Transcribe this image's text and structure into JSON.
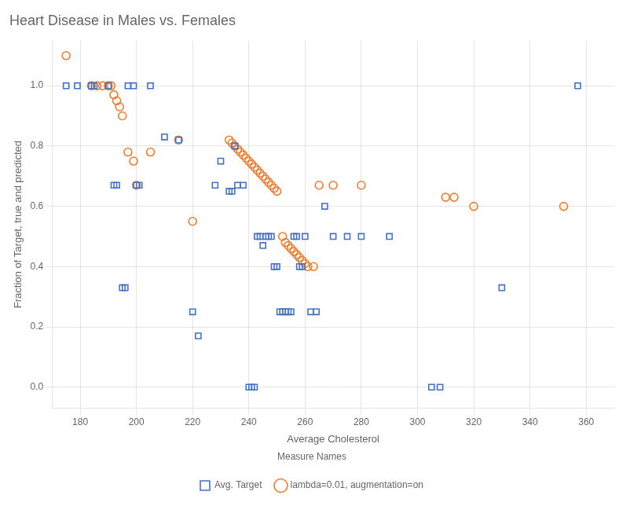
{
  "chart_data": {
    "type": "scatter",
    "title": "Heart Disease in Males vs. Females",
    "x_label": "Average Cholesterol",
    "y_label": "Fraction of Target, true and predicted",
    "xlim": [
      170,
      370
    ],
    "ylim": [
      -0.07,
      1.15
    ],
    "xticks": [
      180,
      200,
      220,
      240,
      260,
      280,
      300,
      320,
      340,
      360
    ],
    "yticks": [
      {
        "value": 0,
        "label": "0.0"
      },
      0.2,
      0.4,
      0.6,
      0.8,
      {
        "value": 1,
        "label": "1.0"
      }
    ],
    "grid": true,
    "legend": "bottom",
    "legend_title": "Measure Names",
    "series": [
      {
        "name": "Avg. Target",
        "color": "#4472c4",
        "marker": "square",
        "x": [
          175,
          179,
          184,
          185,
          190,
          192,
          193,
          195,
          196,
          197,
          199,
          200,
          201,
          205,
          210,
          215,
          220,
          222,
          228,
          230,
          233,
          234,
          235,
          236,
          238,
          240,
          241,
          242,
          243,
          244,
          245,
          246,
          247,
          248,
          249,
          250,
          251,
          252,
          253,
          254,
          255,
          256,
          257,
          258,
          259,
          260,
          262,
          264,
          267,
          270,
          275,
          280,
          290,
          305,
          308,
          330,
          357
        ],
        "values": [
          1.0,
          1.0,
          1.0,
          1.0,
          1.0,
          0.67,
          0.67,
          0.33,
          0.33,
          1.0,
          1.0,
          0.67,
          0.67,
          1.0,
          0.83,
          0.82,
          0.25,
          0.17,
          0.67,
          0.75,
          0.65,
          0.65,
          0.8,
          0.67,
          0.67,
          0.0,
          0.0,
          0.0,
          0.5,
          0.5,
          0.47,
          0.5,
          0.5,
          0.5,
          0.4,
          0.4,
          0.25,
          0.25,
          0.25,
          0.25,
          0.25,
          0.5,
          0.5,
          0.4,
          0.4,
          0.5,
          0.25,
          0.25,
          0.6,
          0.5,
          0.5,
          0.5,
          0.5,
          0.0,
          0.0,
          0.33,
          1.0
        ]
      },
      {
        "name": "lambda=0.01, augmentation=on",
        "color": "#ed7d31",
        "marker": "circle",
        "x": [
          175,
          184,
          186,
          188,
          190,
          191,
          192,
          193,
          194,
          195,
          197,
          199,
          200,
          205,
          215,
          220,
          233,
          234,
          235,
          236,
          237,
          238,
          239,
          240,
          241,
          242,
          243,
          244,
          245,
          246,
          247,
          248,
          249,
          250,
          252,
          253,
          254,
          255,
          256,
          257,
          258,
          259,
          260,
          261,
          263,
          265,
          270,
          280,
          310,
          313,
          320,
          352
        ],
        "values": [
          1.1,
          1.0,
          1.0,
          1.0,
          1.0,
          1.0,
          0.97,
          0.95,
          0.93,
          0.9,
          0.78,
          0.75,
          0.67,
          0.78,
          0.82,
          0.55,
          0.82,
          0.81,
          0.8,
          0.79,
          0.78,
          0.77,
          0.76,
          0.75,
          0.74,
          0.73,
          0.72,
          0.71,
          0.7,
          0.69,
          0.68,
          0.67,
          0.66,
          0.65,
          0.5,
          0.48,
          0.47,
          0.46,
          0.45,
          0.44,
          0.43,
          0.42,
          0.41,
          0.4,
          0.4,
          0.67,
          0.67,
          0.67,
          0.63,
          0.63,
          0.6,
          0.6
        ]
      }
    ]
  }
}
